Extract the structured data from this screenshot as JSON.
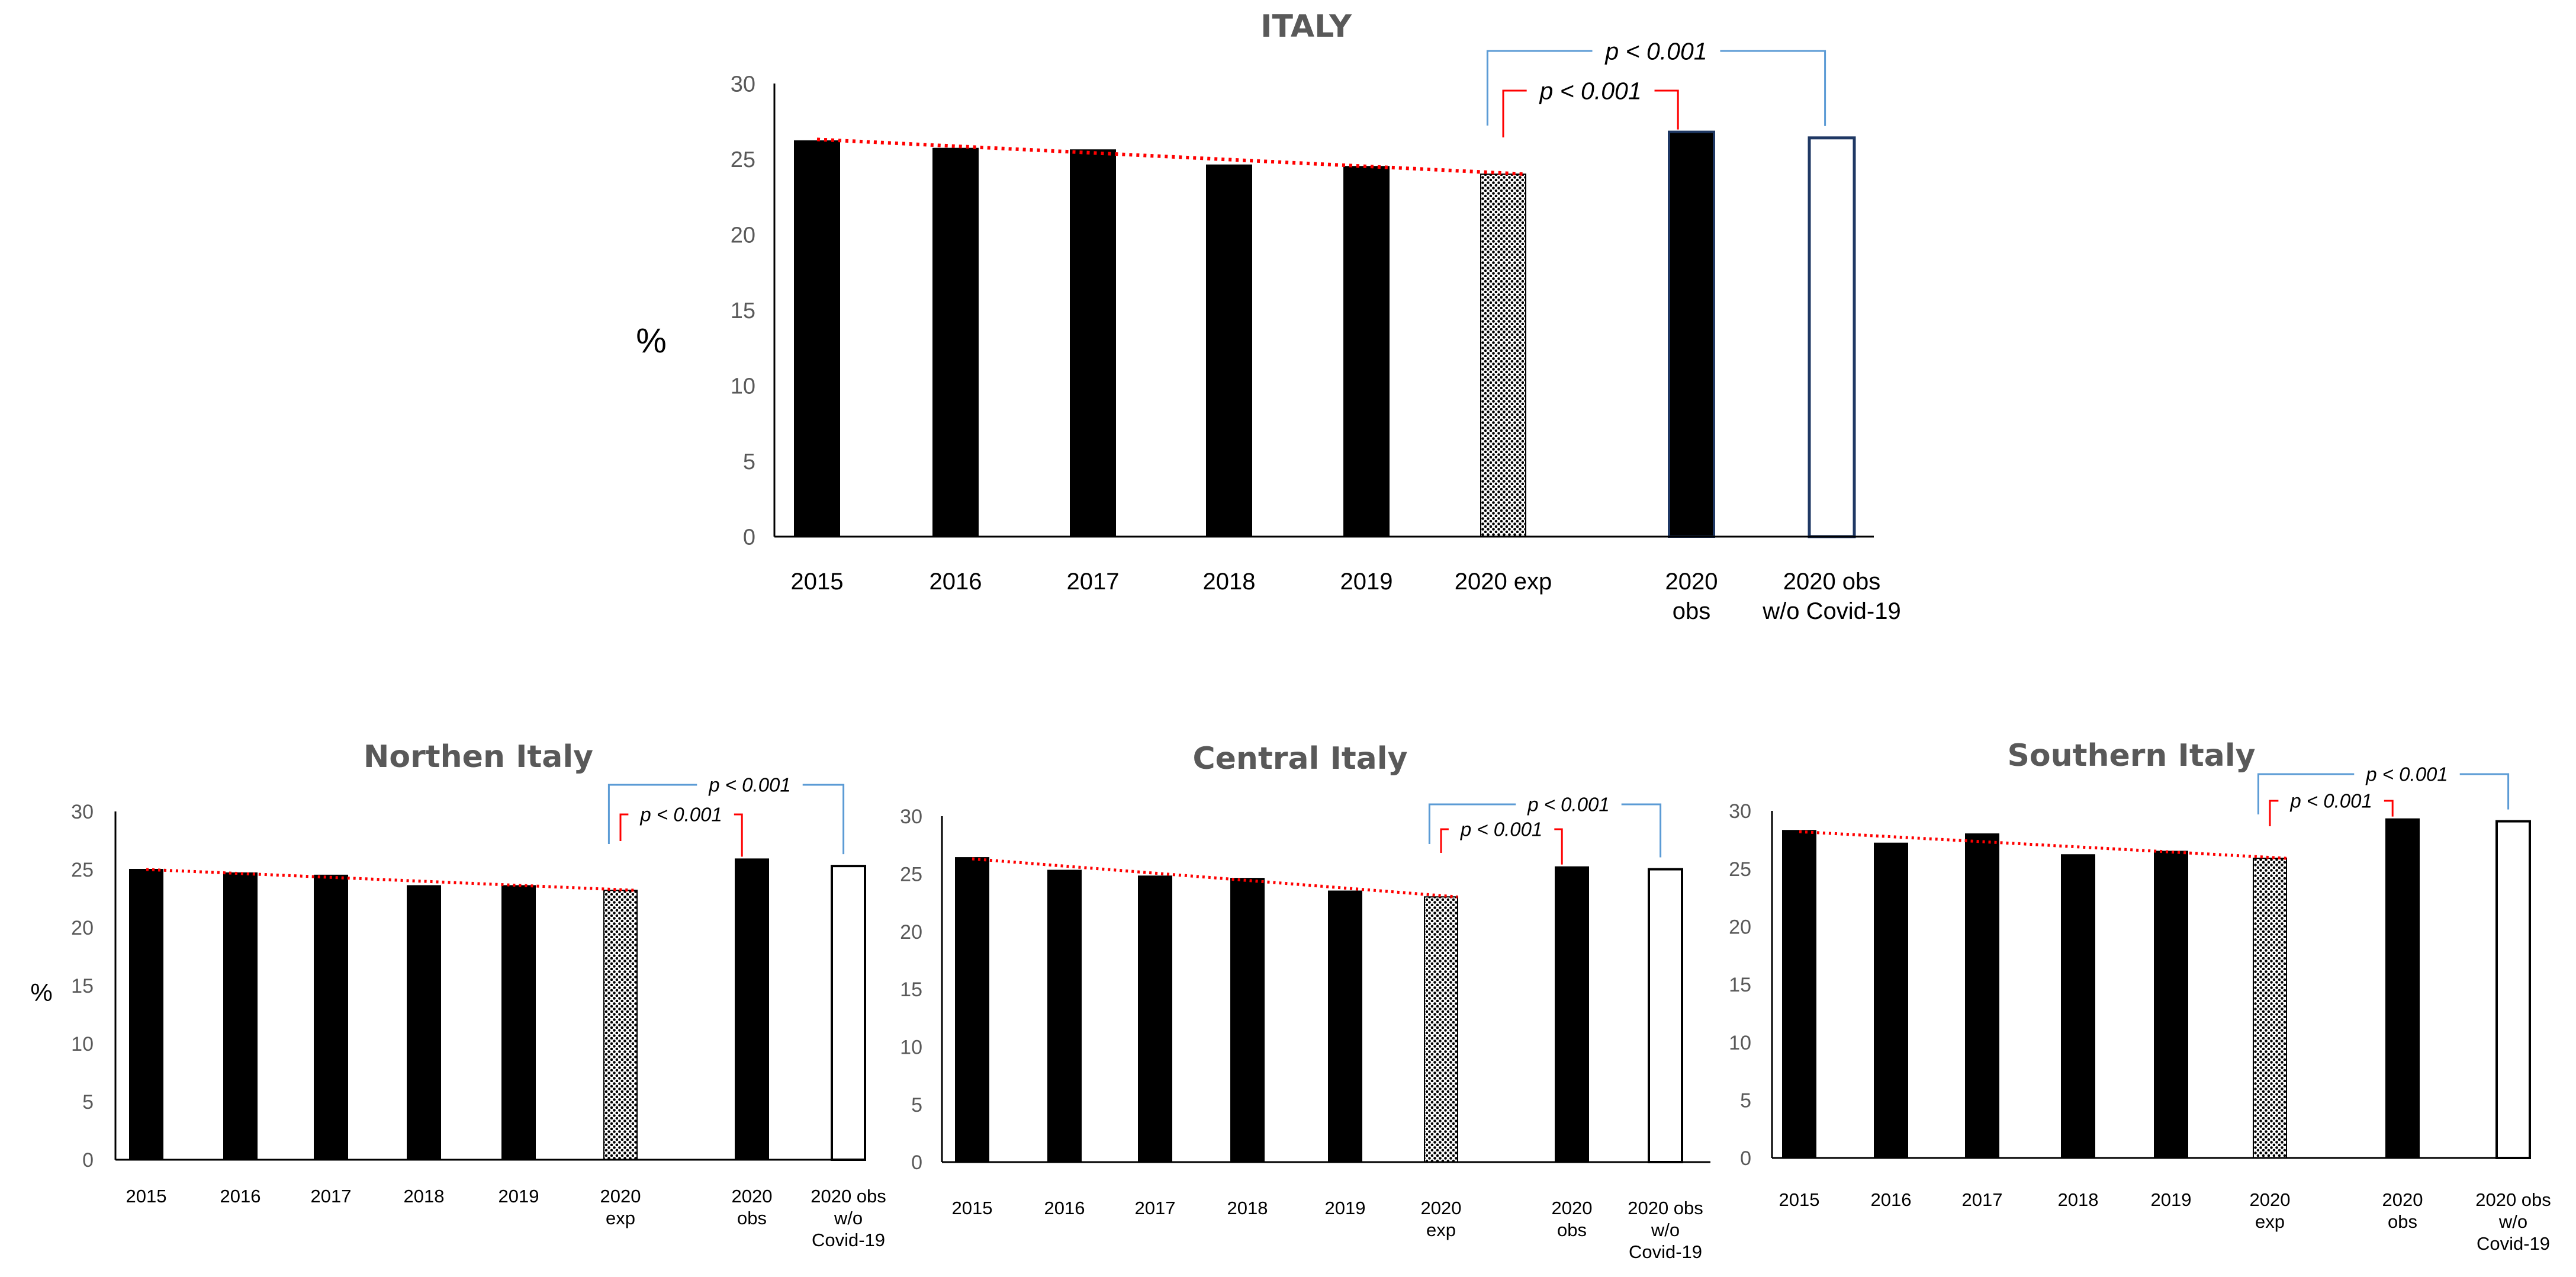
{
  "chart_data": [
    {
      "type": "bar",
      "title": "ITALY",
      "ylabel": "%",
      "xlabel": "",
      "ylim": [
        0,
        30
      ],
      "yticks": [
        0,
        5,
        10,
        15,
        20,
        25,
        30
      ],
      "categories": [
        "2015",
        "2016",
        "2017",
        "2018",
        "2019",
        "2020 exp",
        "2020 obs",
        "2020 obs w/o Covid-19"
      ],
      "values": [
        26.2,
        25.7,
        25.6,
        24.6,
        24.5,
        24.0,
        26.8,
        26.4
      ],
      "bar_styles": [
        "solid",
        "solid",
        "solid",
        "solid",
        "solid",
        "hatched",
        "solid-navy-edge",
        "hollow-navy-edge"
      ],
      "trend": {
        "style": "dotted",
        "color": "#ff0000",
        "from": "2015",
        "to": "2020 exp",
        "start": 26.3,
        "end": 24.0
      },
      "annotations": [
        {
          "text": "p < 0.001",
          "between": [
            "2020 exp",
            "2020 obs"
          ],
          "color": "#ff0000"
        },
        {
          "text": "p < 0.001",
          "between": [
            "2020 exp",
            "2020 obs w/o Covid-19"
          ],
          "color": "#5b9bd5"
        }
      ]
    },
    {
      "type": "bar",
      "title": "Northen Italy",
      "ylabel": "%",
      "xlabel": "",
      "ylim": [
        0,
        30
      ],
      "yticks": [
        0,
        5,
        10,
        15,
        20,
        25,
        30
      ],
      "categories": [
        "2015",
        "2016",
        "2017",
        "2018",
        "2019",
        "2020 exp",
        "2020 obs",
        "2020 obs w/o Covid-19"
      ],
      "values": [
        25.0,
        24.7,
        24.5,
        23.6,
        23.6,
        23.2,
        25.9,
        25.3
      ],
      "bar_styles": [
        "solid",
        "solid",
        "solid",
        "solid",
        "solid",
        "hatched",
        "solid",
        "hollow"
      ],
      "trend": {
        "style": "dotted",
        "color": "#ff0000",
        "from": "2015",
        "to": "2020 exp",
        "start": 25.0,
        "end": 23.2
      },
      "annotations": [
        {
          "text": "p < 0.001",
          "between": [
            "2020 exp",
            "2020 obs"
          ],
          "color": "#ff0000"
        },
        {
          "text": "p < 0.001",
          "between": [
            "2020 exp",
            "2020 obs w/o Covid-19"
          ],
          "color": "#5b9bd5"
        }
      ]
    },
    {
      "type": "bar",
      "title": "Central Italy",
      "ylabel": "",
      "xlabel": "",
      "ylim": [
        0,
        30
      ],
      "yticks": [
        0,
        5,
        10,
        15,
        20,
        25,
        30
      ],
      "categories": [
        "2015",
        "2016",
        "2017",
        "2018",
        "2019",
        "2020 exp",
        "2020 obs",
        "2020 obs w/o Covid-19"
      ],
      "values": [
        26.4,
        25.3,
        24.8,
        24.6,
        23.5,
        23.0,
        25.6,
        25.4
      ],
      "bar_styles": [
        "solid",
        "solid",
        "solid",
        "solid",
        "solid",
        "hatched",
        "solid",
        "hollow"
      ],
      "trend": {
        "style": "dotted",
        "color": "#ff0000",
        "from": "2015",
        "to": "2020 exp",
        "start": 26.3,
        "end": 23.0
      },
      "annotations": [
        {
          "text": "p < 0.001",
          "between": [
            "2020 exp",
            "2020 obs"
          ],
          "color": "#ff0000"
        },
        {
          "text": "p < 0.001",
          "between": [
            "2020 exp",
            "2020 obs w/o Covid-19"
          ],
          "color": "#5b9bd5"
        }
      ]
    },
    {
      "type": "bar",
      "title": "Southern Italy",
      "ylabel": "",
      "xlabel": "",
      "ylim": [
        0,
        30
      ],
      "yticks": [
        0,
        5,
        10,
        15,
        20,
        25,
        30
      ],
      "categories": [
        "2015",
        "2016",
        "2017",
        "2018",
        "2019",
        "2020 exp",
        "2020 obs",
        "2020 obs w/o Covid-19"
      ],
      "values": [
        28.3,
        27.2,
        28.0,
        26.2,
        26.5,
        25.9,
        29.3,
        29.1
      ],
      "bar_styles": [
        "solid",
        "solid",
        "solid",
        "solid",
        "solid",
        "hatched",
        "solid",
        "hollow"
      ],
      "trend": {
        "style": "dotted",
        "color": "#ff0000",
        "from": "2015",
        "to": "2020 exp",
        "start": 28.2,
        "end": 25.9
      },
      "annotations": [
        {
          "text": "p < 0.001",
          "between": [
            "2020 exp",
            "2020 obs"
          ],
          "color": "#ff0000"
        },
        {
          "text": "p < 0.001",
          "between": [
            "2020 exp",
            "2020 obs w/o Covid-19"
          ],
          "color": "#5b9bd5"
        }
      ]
    }
  ],
  "colors": {
    "bar": "#000000",
    "navy_edge": "#1f3864",
    "trend": "#ff0000",
    "bracket_red": "#ff0000",
    "bracket_blue": "#5b9bd5",
    "title": "#595959",
    "tick": "#595959"
  },
  "icons": [
    "hatch-pattern"
  ]
}
